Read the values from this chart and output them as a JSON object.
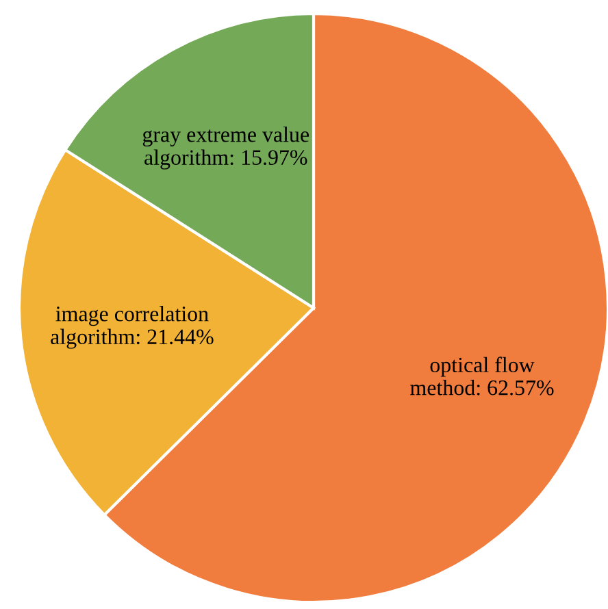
{
  "chart_data": {
    "type": "pie",
    "categories": [
      "optical flow\nmethod",
      "image correlation\nalgorithm",
      "gray extreme value\nalgorithm"
    ],
    "values": [
      62.57,
      21.44,
      15.97
    ],
    "value_labels": [
      "62.57%",
      "21.44%",
      "15.97%"
    ],
    "colors": [
      "#f07d3e",
      "#f2b235",
      "#74a957"
    ]
  }
}
